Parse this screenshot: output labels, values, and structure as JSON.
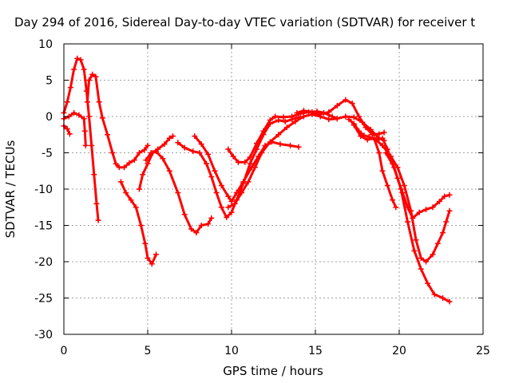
{
  "chart_data": {
    "type": "scatter",
    "title": "Day 294 of 2016, Sidereal Day-to-day VTEC variation (SDTVAR) for receiver t",
    "xlabel": "GPS time / hours",
    "ylabel": "SDTVAR / TECUs",
    "xlim": [
      0,
      25
    ],
    "ylim": [
      -30,
      10
    ],
    "xticks": [
      "0",
      "5",
      "10",
      "15",
      "20",
      "25"
    ],
    "yticks": [
      "-30",
      "-25",
      "-20",
      "-15",
      "-10",
      "-5",
      "0",
      "5",
      "10"
    ],
    "grid": true,
    "marker": "plus",
    "color": "#ff0000",
    "series": [
      {
        "points": [
          [
            0.0,
            -1.3
          ],
          [
            0.2,
            -1.7
          ],
          [
            0.35,
            -2.4
          ]
        ]
      },
      {
        "points": [
          [
            0.0,
            0.5
          ],
          [
            0.2,
            2.0
          ],
          [
            0.4,
            4.0
          ],
          [
            0.6,
            6.5
          ],
          [
            0.8,
            8.0
          ],
          [
            1.0,
            7.8
          ],
          [
            1.2,
            6.5
          ],
          [
            1.35,
            3.5
          ],
          [
            1.5,
            0.0
          ],
          [
            1.65,
            -4.0
          ],
          [
            1.8,
            -8.0
          ],
          [
            1.95,
            -12.0
          ],
          [
            2.05,
            -14.3
          ]
        ]
      },
      {
        "points": [
          [
            0.0,
            -0.3
          ],
          [
            0.3,
            0.0
          ],
          [
            0.6,
            0.5
          ],
          [
            0.9,
            0.2
          ],
          [
            1.2,
            -0.3
          ],
          [
            1.25,
            -2.0
          ],
          [
            1.3,
            -4.0
          ]
        ]
      },
      {
        "points": [
          [
            1.4,
            2.0
          ],
          [
            1.5,
            5.0
          ],
          [
            1.7,
            5.8
          ],
          [
            1.9,
            5.5
          ],
          [
            2.1,
            2.0
          ],
          [
            2.3,
            -0.2
          ],
          [
            2.6,
            -2.5
          ],
          [
            2.9,
            -5.0
          ],
          [
            3.1,
            -6.5
          ],
          [
            3.3,
            -7.0
          ],
          [
            3.6,
            -7.0
          ],
          [
            3.9,
            -6.4
          ],
          [
            4.2,
            -6.0
          ],
          [
            4.5,
            -5.0
          ],
          [
            4.8,
            -4.6
          ],
          [
            5.0,
            -4.0
          ]
        ]
      },
      {
        "points": [
          [
            3.4,
            -9.0
          ],
          [
            3.7,
            -10.5
          ],
          [
            4.0,
            -11.5
          ],
          [
            4.3,
            -12.5
          ],
          [
            4.6,
            -15.0
          ],
          [
            4.85,
            -17.5
          ],
          [
            5.0,
            -19.5
          ],
          [
            5.25,
            -20.3
          ],
          [
            5.5,
            -19.0
          ]
        ]
      },
      {
        "points": [
          [
            4.5,
            -10.0
          ],
          [
            4.7,
            -8.0
          ],
          [
            5.0,
            -6.5
          ],
          [
            5.3,
            -5.0
          ],
          [
            5.6,
            -4.5
          ],
          [
            6.0,
            -3.8
          ],
          [
            6.3,
            -3.0
          ],
          [
            6.5,
            -2.7
          ]
        ]
      },
      {
        "points": [
          [
            4.9,
            -6.0
          ],
          [
            5.2,
            -5.0
          ],
          [
            5.5,
            -4.8
          ],
          [
            5.9,
            -5.8
          ],
          [
            6.3,
            -7.5
          ],
          [
            6.8,
            -10.5
          ],
          [
            7.2,
            -13.5
          ],
          [
            7.6,
            -15.5
          ],
          [
            7.9,
            -16.0
          ],
          [
            8.2,
            -15.0
          ],
          [
            8.6,
            -14.8
          ],
          [
            8.8,
            -14.0
          ]
        ]
      },
      {
        "points": [
          [
            6.8,
            -3.6
          ],
          [
            7.2,
            -4.3
          ],
          [
            7.7,
            -4.8
          ],
          [
            8.1,
            -5.0
          ],
          [
            8.5,
            -6.5
          ],
          [
            8.8,
            -8.3
          ],
          [
            9.1,
            -10.5
          ],
          [
            9.4,
            -12.5
          ],
          [
            9.7,
            -13.9
          ],
          [
            10.0,
            -13.2
          ],
          [
            10.3,
            -11.5
          ],
          [
            10.7,
            -9.2
          ],
          [
            11.1,
            -6.5
          ],
          [
            11.5,
            -4.5
          ],
          [
            11.9,
            -2.5
          ],
          [
            12.3,
            -1.0
          ],
          [
            12.8,
            -0.5
          ],
          [
            13.2,
            -0.7
          ],
          [
            13.6,
            -0.4
          ],
          [
            14.0,
            -0.1
          ]
        ]
      },
      {
        "points": [
          [
            7.8,
            -2.7
          ],
          [
            8.2,
            -3.8
          ],
          [
            8.6,
            -5.2
          ],
          [
            9.0,
            -7.5
          ],
          [
            9.4,
            -9.5
          ],
          [
            9.8,
            -11.0
          ],
          [
            10.0,
            -11.7
          ],
          [
            10.3,
            -10.5
          ],
          [
            10.7,
            -9.0
          ],
          [
            11.2,
            -7.0
          ],
          [
            11.6,
            -5.5
          ],
          [
            12.0,
            -4.0
          ],
          [
            12.4,
            -3.5
          ],
          [
            12.9,
            -3.8
          ],
          [
            13.5,
            -4.0
          ],
          [
            14.0,
            -4.2
          ]
        ]
      },
      {
        "points": [
          [
            9.8,
            -4.5
          ],
          [
            10.1,
            -5.5
          ],
          [
            10.4,
            -6.3
          ],
          [
            10.8,
            -6.3
          ],
          [
            11.1,
            -5.6
          ],
          [
            11.5,
            -3.7
          ],
          [
            11.9,
            -2.0
          ],
          [
            12.3,
            -0.5
          ],
          [
            12.6,
            0.0
          ],
          [
            13.1,
            -0.1
          ],
          [
            13.6,
            0.0
          ],
          [
            14.1,
            0.4
          ],
          [
            14.6,
            0.6
          ],
          [
            15.1,
            0.7
          ],
          [
            15.5,
            0.5
          ],
          [
            16.0,
            0.0
          ],
          [
            16.3,
            -0.3
          ]
        ]
      },
      {
        "points": [
          [
            9.8,
            -12.5
          ],
          [
            10.2,
            -12.0
          ],
          [
            10.6,
            -10.5
          ],
          [
            11.0,
            -9.0
          ],
          [
            11.4,
            -7.0
          ],
          [
            11.8,
            -5.0
          ],
          [
            12.3,
            -3.5
          ],
          [
            12.8,
            -2.5
          ],
          [
            13.3,
            -1.5
          ],
          [
            13.8,
            -0.7
          ],
          [
            14.3,
            0.0
          ],
          [
            14.8,
            0.3
          ],
          [
            15.3,
            0.0
          ],
          [
            15.8,
            -0.4
          ],
          [
            16.3,
            -0.3
          ],
          [
            16.8,
            0.0
          ],
          [
            17.3,
            -0.1
          ],
          [
            17.8,
            -0.8
          ],
          [
            18.3,
            -1.8
          ],
          [
            18.8,
            -3.0
          ],
          [
            19.1,
            -3.3
          ]
        ]
      },
      {
        "points": [
          [
            13.9,
            0.5
          ],
          [
            14.3,
            0.8
          ],
          [
            14.8,
            0.6
          ],
          [
            15.3,
            0.3
          ],
          [
            15.8,
            0.6
          ],
          [
            16.3,
            1.5
          ],
          [
            16.8,
            2.3
          ],
          [
            17.2,
            1.8
          ],
          [
            17.6,
            0.0
          ],
          [
            18.0,
            -1.5
          ],
          [
            18.4,
            -2.5
          ],
          [
            18.8,
            -2.4
          ],
          [
            19.1,
            -2.2
          ]
        ]
      },
      {
        "points": [
          [
            17.0,
            -0.4
          ],
          [
            17.3,
            -1.0
          ],
          [
            17.6,
            -2.0
          ],
          [
            17.9,
            -2.6
          ],
          [
            18.2,
            -2.8
          ],
          [
            18.6,
            -3.2
          ],
          [
            19.0,
            -3.0
          ],
          [
            19.3,
            -4.5
          ],
          [
            19.6,
            -6.5
          ],
          [
            19.9,
            -8.5
          ],
          [
            20.2,
            -10.5
          ],
          [
            20.5,
            -12.5
          ],
          [
            20.8,
            -14.0
          ],
          [
            21.2,
            -13.2
          ],
          [
            21.6,
            -12.8
          ],
          [
            22.0,
            -12.5
          ],
          [
            22.4,
            -11.7
          ],
          [
            22.7,
            -11.0
          ],
          [
            23.0,
            -10.8
          ]
        ]
      },
      {
        "points": [
          [
            18.5,
            -3.0
          ],
          [
            18.8,
            -5.0
          ],
          [
            19.0,
            -7.5
          ],
          [
            19.3,
            -9.5
          ],
          [
            19.6,
            -11.5
          ],
          [
            19.8,
            -12.5
          ]
        ]
      },
      {
        "points": [
          [
            17.3,
            -1.2
          ],
          [
            17.7,
            -2.7
          ],
          [
            18.1,
            -3.2
          ],
          [
            18.5,
            -3.0
          ],
          [
            19.0,
            -4.0
          ],
          [
            19.5,
            -5.5
          ],
          [
            19.9,
            -7.0
          ],
          [
            20.3,
            -9.5
          ],
          [
            20.7,
            -13.0
          ],
          [
            21.0,
            -17.0
          ],
          [
            21.3,
            -19.5
          ],
          [
            21.6,
            -20.0
          ],
          [
            22.0,
            -19.0
          ],
          [
            22.3,
            -17.5
          ],
          [
            22.6,
            -16.0
          ],
          [
            22.8,
            -14.5
          ],
          [
            23.0,
            -13.0
          ]
        ]
      },
      {
        "points": [
          [
            19.2,
            -5.0
          ],
          [
            19.7,
            -7.0
          ],
          [
            20.1,
            -10.0
          ],
          [
            20.5,
            -14.5
          ],
          [
            20.9,
            -18.5
          ],
          [
            21.3,
            -21.0
          ],
          [
            21.7,
            -23.0
          ],
          [
            22.1,
            -24.5
          ],
          [
            22.6,
            -25.0
          ],
          [
            23.0,
            -25.5
          ]
        ]
      }
    ]
  }
}
